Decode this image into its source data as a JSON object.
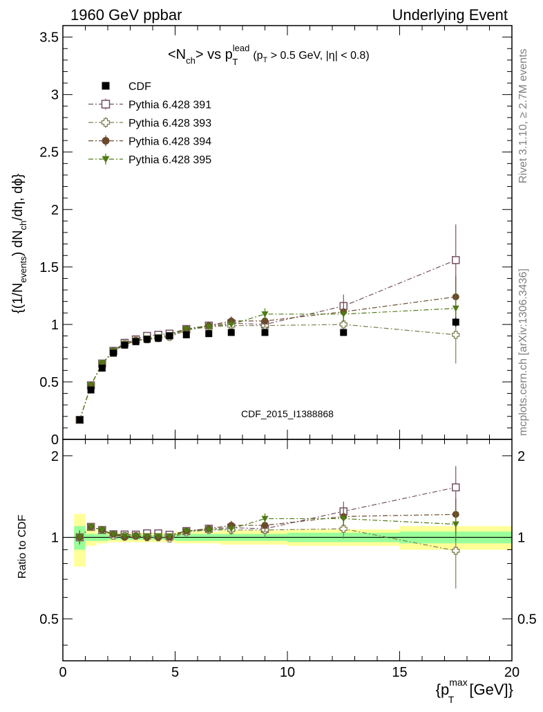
{
  "header": {
    "left": "1960 GeV ppbar",
    "right": "Underlying Event"
  },
  "side_text": {
    "top": "Rivet 3.1.10, ≥ 2.7M events",
    "bottom": "mcplots.cern.ch [arXiv:1306.3436]"
  },
  "watermark": "CDF_2015_I1388868",
  "title": {
    "pre": "<N",
    "sub1": "ch",
    "mid": "> vs p",
    "sup": "lead",
    "sub2": "T",
    "cond_pre": "(p",
    "cond_sub": "T",
    "cond_post": " > 0.5 GeV, |η| < 0.8)"
  },
  "ylabel": {
    "p1": "{(1/N",
    "s1": "events",
    "p2": ") dN",
    "s2": "ch",
    "p3": "/dη, dϕ}"
  },
  "ratio_ylabel": "Ratio to CDF",
  "xlabel": {
    "p1": "{p",
    "sub": "T",
    "sup": "max",
    "p2": " [GeV]}"
  },
  "colors": {
    "cdf": "#000000",
    "p391": "#734f63",
    "p393": "#7e7d51",
    "p394": "#6b4a2c",
    "p395": "#4e7a14",
    "band_inner": "#99ff99",
    "band_outer": "#ffff99"
  },
  "chart_data": {
    "type": "scatter",
    "x_label": "{p_T^max [GeV]}",
    "y_label": "{(1/N_events) dN_ch/dη, dϕ}",
    "xlim": [
      0,
      20
    ],
    "ylim": [
      0,
      3.6
    ],
    "ratio_ylim": [
      0.35,
      2.3
    ],
    "x_ticks": [
      "0",
      "5",
      "10",
      "15",
      "20"
    ],
    "y_ticks": [
      "0",
      "0.5",
      "1",
      "1.5",
      "2",
      "2.5",
      "3",
      "3.5"
    ],
    "ratio_y_ticks": [
      "0.5",
      "1",
      "2"
    ],
    "legend_position": "top-left",
    "x": [
      0.75,
      1.25,
      1.75,
      2.25,
      2.75,
      3.25,
      3.75,
      4.25,
      4.75,
      5.5,
      6.5,
      7.5,
      9.0,
      12.5,
      17.5
    ],
    "x_bins": [
      [
        0.5,
        1.0
      ],
      [
        1.0,
        1.5
      ],
      [
        1.5,
        2.0
      ],
      [
        2.0,
        2.5
      ],
      [
        2.5,
        3.0
      ],
      [
        3.0,
        3.5
      ],
      [
        3.5,
        4.0
      ],
      [
        4.0,
        4.5
      ],
      [
        4.5,
        5.0
      ],
      [
        5.0,
        6.0
      ],
      [
        6.0,
        7.0
      ],
      [
        7.0,
        8.0
      ],
      [
        8.0,
        10.0
      ],
      [
        10.0,
        15.0
      ],
      [
        15.0,
        20.0
      ]
    ],
    "series": [
      {
        "name": "CDF",
        "marker": "square-filled",
        "values": [
          0.17,
          0.43,
          0.62,
          0.75,
          0.82,
          0.85,
          0.87,
          0.88,
          0.9,
          0.91,
          0.92,
          0.93,
          0.93,
          0.93,
          1.02
        ],
        "errors": [
          0.01,
          0.01,
          0.01,
          0.01,
          0.01,
          0.01,
          0.01,
          0.01,
          0.01,
          0.01,
          0.01,
          0.01,
          0.02,
          0.02,
          0.04
        ]
      },
      {
        "name": "Pythia 6.428 391",
        "marker": "square-open",
        "values": [
          0.17,
          0.47,
          0.66,
          0.77,
          0.84,
          0.87,
          0.9,
          0.91,
          0.92,
          0.96,
          0.99,
          1.01,
          1.0,
          1.16,
          1.56
        ],
        "errors": [
          0.01,
          0.01,
          0.01,
          0.01,
          0.01,
          0.01,
          0.01,
          0.01,
          0.02,
          0.02,
          0.03,
          0.04,
          0.06,
          0.1,
          0.31
        ]
      },
      {
        "name": "Pythia 6.428 393",
        "marker": "cross-open",
        "values": [
          0.17,
          0.47,
          0.66,
          0.76,
          0.83,
          0.86,
          0.87,
          0.88,
          0.89,
          0.95,
          0.98,
          0.99,
          0.99,
          1.0,
          0.91
        ],
        "errors": [
          0.01,
          0.01,
          0.01,
          0.01,
          0.01,
          0.01,
          0.01,
          0.01,
          0.02,
          0.02,
          0.03,
          0.04,
          0.06,
          0.08,
          0.25
        ]
      },
      {
        "name": "Pythia 6.428 394",
        "marker": "circle-filled",
        "values": [
          0.17,
          0.47,
          0.66,
          0.77,
          0.82,
          0.86,
          0.87,
          0.88,
          0.9,
          0.96,
          0.99,
          1.03,
          1.03,
          1.11,
          1.24
        ],
        "errors": [
          0.01,
          0.01,
          0.01,
          0.01,
          0.01,
          0.01,
          0.01,
          0.01,
          0.02,
          0.02,
          0.03,
          0.04,
          0.06,
          0.08,
          0.18
        ]
      },
      {
        "name": "Pythia 6.428 395",
        "marker": "triangle-down-filled",
        "values": [
          0.17,
          0.47,
          0.66,
          0.77,
          0.83,
          0.86,
          0.88,
          0.89,
          0.91,
          0.96,
          0.98,
          1.0,
          1.09,
          1.09,
          1.14
        ],
        "errors": [
          0.01,
          0.01,
          0.01,
          0.01,
          0.01,
          0.01,
          0.01,
          0.01,
          0.02,
          0.02,
          0.03,
          0.04,
          0.05,
          0.07,
          0.15
        ]
      }
    ],
    "cdf_ratio_band_inner": [
      0.1,
      0.03,
      0.03,
      0.02,
      0.02,
      0.02,
      0.02,
      0.02,
      0.02,
      0.03,
      0.03,
      0.03,
      0.03,
      0.04,
      0.05
    ],
    "cdf_ratio_band_outer": [
      0.22,
      0.07,
      0.05,
      0.04,
      0.04,
      0.04,
      0.04,
      0.04,
      0.04,
      0.05,
      0.05,
      0.06,
      0.06,
      0.07,
      0.1
    ]
  }
}
